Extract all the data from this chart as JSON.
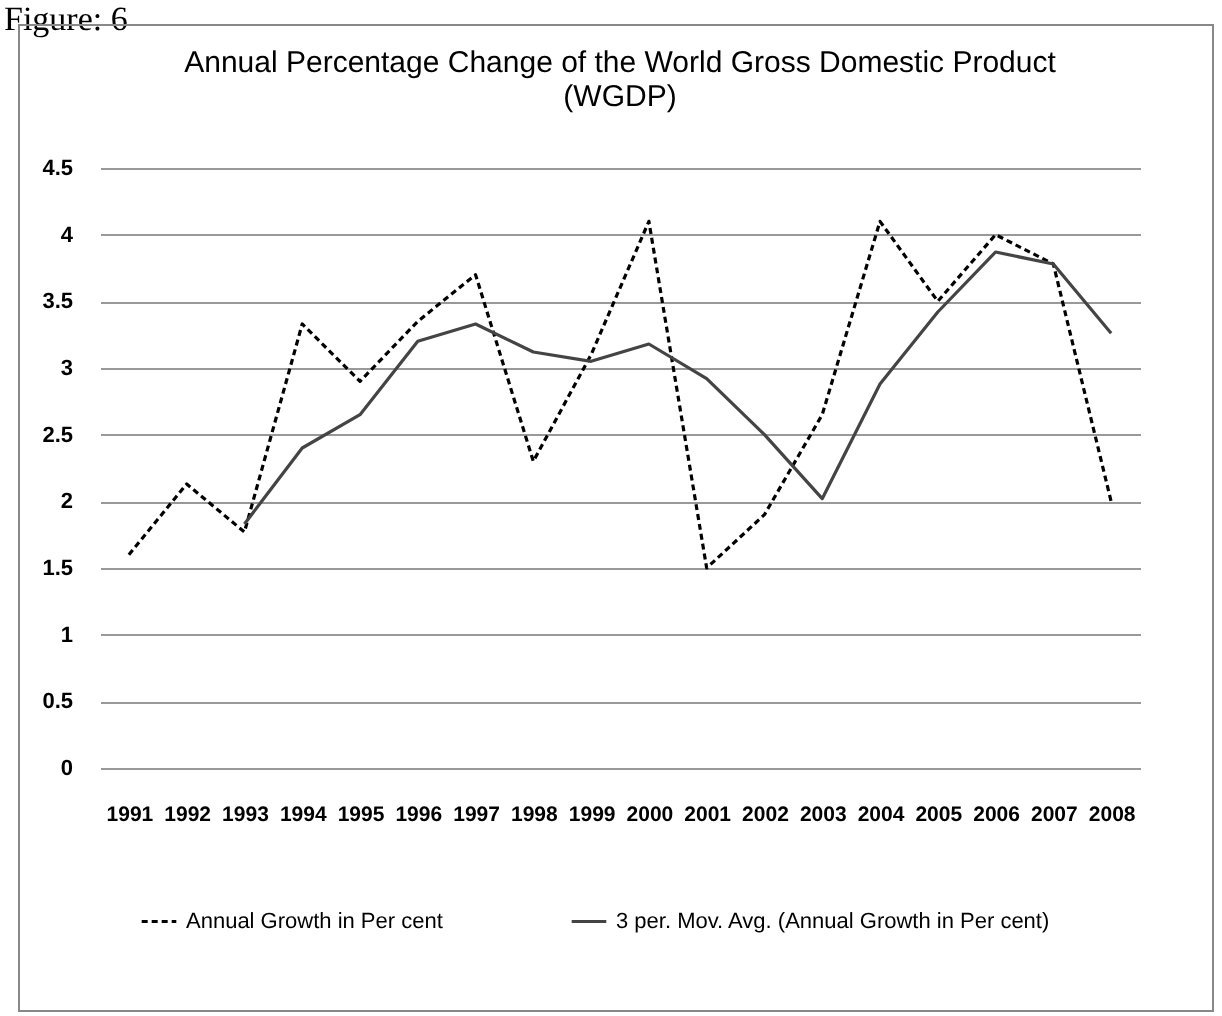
{
  "chart_data": {
    "type": "line",
    "title": [
      "Annual Percentage Change of the  World  Gross Domestic Product",
      "(WGDP)"
    ],
    "annotations": [
      "Figure: 6"
    ],
    "categories": [
      "1991",
      "1992",
      "1993",
      "1994",
      "1995",
      "1996",
      "1997",
      "1998",
      "1999",
      "2000",
      "2001",
      "2002",
      "2003",
      "2004",
      "2005",
      "2006",
      "2007",
      "2008"
    ],
    "series": [
      {
        "name": "Annual Growth in Per cent",
        "color": "#000000",
        "line_style": "dashed",
        "values": [
          1.6,
          2.13,
          1.77,
          3.33,
          2.9,
          3.35,
          3.7,
          2.3,
          3.1,
          4.1,
          1.5,
          1.9,
          2.65,
          4.1,
          3.5,
          4.0,
          3.78,
          2.0
        ]
      },
      {
        "name": "3 per. Mov. Avg. (Annual Growth in Per cent)",
        "color": "#444444",
        "line_style": "solid",
        "values": [
          null,
          null,
          1.83,
          2.4,
          2.65,
          3.2,
          3.33,
          3.12,
          3.05,
          3.18,
          2.92,
          2.5,
          2.02,
          2.88,
          3.42,
          3.87,
          3.78,
          3.26
        ]
      }
    ],
    "ylim": [
      0,
      4.5
    ],
    "yticks": [
      0,
      0.5,
      1,
      1.5,
      2,
      2.5,
      3,
      3.5,
      4,
      4.5
    ],
    "grid": "y",
    "legend": "bottom",
    "marker": "none"
  }
}
